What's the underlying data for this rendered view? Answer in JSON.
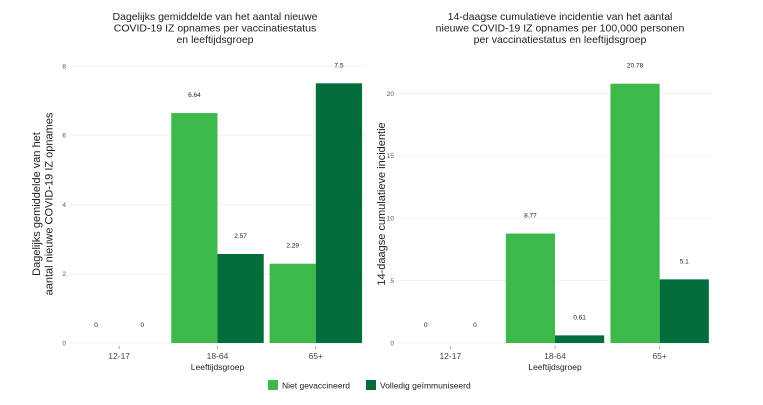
{
  "legend": [
    {
      "label": "Niet gevaccineerd",
      "color": "#3cb94a"
    },
    {
      "label": "Volledig geïmmuniseerd",
      "color": "#006d3a"
    }
  ],
  "chart_data": [
    {
      "type": "bar",
      "title": [
        "Dagelijks gemiddelde van het aantal nieuwe",
        "COVID-19 IZ opnames per vaccinatiestatus",
        "en leeftijdsgroep"
      ],
      "ylabel": [
        "Dagelijks gemiddelde van het",
        "aantal nieuwe COVID-19 IZ opnames"
      ],
      "xlabel": "Leeftijdsgroep",
      "categories": [
        "12-17",
        "18-64",
        "65+"
      ],
      "ylim": [
        0,
        8
      ],
      "yticks": [
        0,
        2,
        4,
        6,
        8
      ],
      "series": [
        {
          "name": "Niet gevaccineerd",
          "values": [
            0,
            6.64,
            2.29
          ],
          "labels": [
            "0",
            "6.64",
            "2.29"
          ]
        },
        {
          "name": "Volledig geïmmuniseerd",
          "values": [
            0,
            2.57,
            7.5
          ],
          "labels": [
            "0",
            "2.57",
            "7.5"
          ]
        }
      ],
      "grid": true,
      "legend": "bottom"
    },
    {
      "type": "bar",
      "title": [
        "14-daagse cumulatieve incidentie van het aantal",
        "nieuwe COVID-19 IZ opnames per 100,000 personen",
        "per vaccinatiestatus en leeftijdsgroep"
      ],
      "ylabel": [
        "14-daagse cumulatieve incidentie"
      ],
      "xlabel": "Leeftijdsgroep",
      "categories": [
        "12-17",
        "18-64",
        "65+"
      ],
      "ylim": [
        0,
        22.2
      ],
      "yticks": [
        0,
        5,
        10,
        15,
        20
      ],
      "series": [
        {
          "name": "Niet gevaccineerd",
          "values": [
            0,
            8.77,
            20.78
          ],
          "labels": [
            "0",
            "8.77",
            "20.78"
          ]
        },
        {
          "name": "Volledig geïmmuniseerd",
          "values": [
            0,
            0.61,
            5.1
          ],
          "labels": [
            "0",
            "0.61",
            "5.1"
          ]
        }
      ],
      "grid": true,
      "legend": "bottom"
    }
  ]
}
